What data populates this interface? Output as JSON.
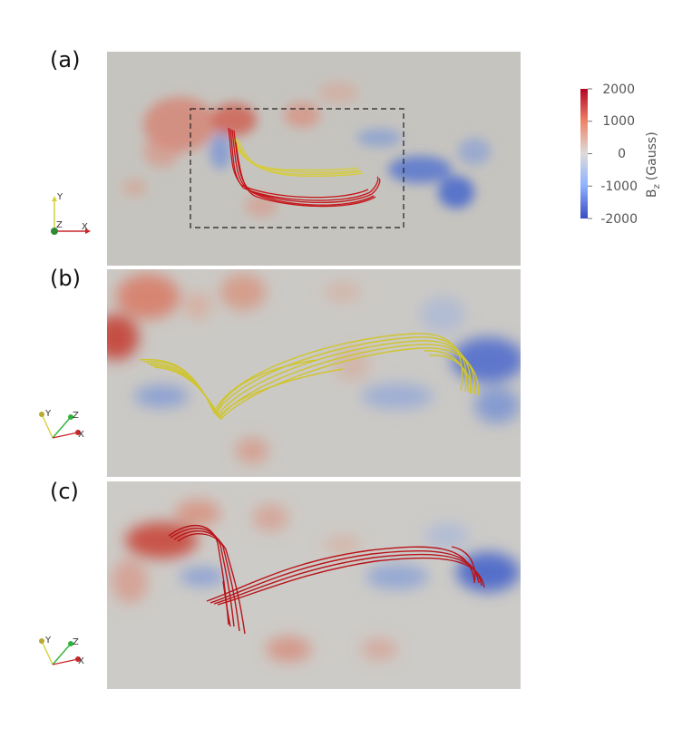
{
  "panels": [
    {
      "id": "a",
      "label": "(a)"
    },
    {
      "id": "b",
      "label": "(b)"
    },
    {
      "id": "c",
      "label": "(c)"
    }
  ],
  "colorbar": {
    "title": "B",
    "title_sub": "z",
    "title_unit": "(Gauss)",
    "ticks": [
      "2000",
      "1000",
      "0",
      "-1000",
      "-2000"
    ],
    "colors": {
      "max": "#b40426",
      "mid": "#dddddd",
      "min": "#3b4cc0"
    }
  },
  "axes_triad": {
    "x": "X",
    "y": "Y",
    "z": "Z"
  },
  "colors": {
    "background_map": "#c9c7c3",
    "yellow_lines": "#d8cf3a",
    "red_lines": "#c8181c",
    "box": "#222222"
  }
}
